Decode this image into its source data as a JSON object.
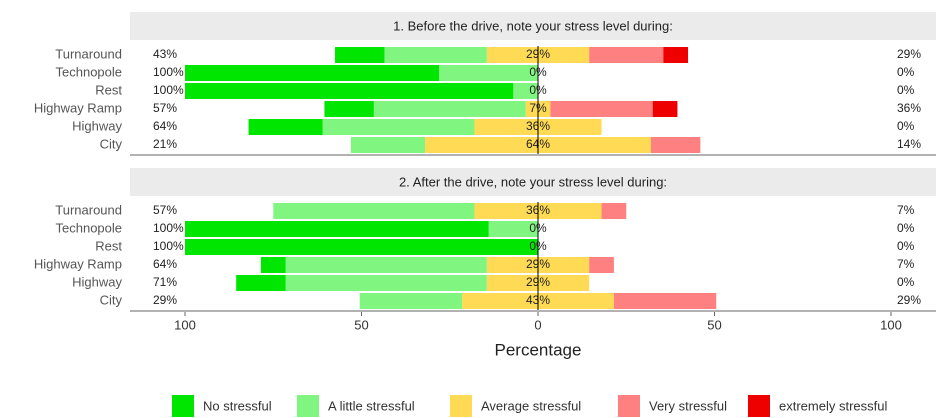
{
  "chart_data": {
    "type": "diverging_bar",
    "x_label": "Percentage",
    "xlim": [
      -100,
      100
    ],
    "xticks": [
      {
        "value": -100,
        "label": "100"
      },
      {
        "value": -50,
        "label": "50"
      },
      0,
      50,
      100
    ],
    "panels": [
      {
        "title": "1. Before the drive, note your stress level during:",
        "categories": [
          "Turnaround",
          "Technopole",
          "Rest",
          "Highway Ramp",
          "Highway",
          "City"
        ],
        "left_labels": [
          "43%",
          "100%",
          "100%",
          "57%",
          "64%",
          "21%"
        ],
        "right_labels": [
          "29%",
          "0%",
          "0%",
          "36%",
          "0%",
          "14%"
        ],
        "series": [
          {
            "name": "No stressful",
            "color": "#00e600",
            "values": [
              14,
              72,
              93,
              14,
              21,
              0
            ]
          },
          {
            "name": "A little stressful",
            "color": "#80f580",
            "values": [
              29,
              28,
              7,
              43,
              43,
              21
            ]
          },
          {
            "name": "Average stressful",
            "color": "#ffdb55",
            "values": [
              29,
              0,
              0,
              7,
              36,
              64
            ],
            "value_labels": [
              "29%",
              "0%",
              "0%",
              "7%",
              "36%",
              "64%"
            ]
          },
          {
            "name": "Very stressful",
            "color": "#ff8080",
            "values": [
              21,
              0,
              0,
              29,
              0,
              14
            ]
          },
          {
            "name": "extremely stressful",
            "color": "#ee0000",
            "values": [
              7,
              0,
              0,
              7,
              0,
              0
            ]
          }
        ]
      },
      {
        "title": "2. After the drive, note your stress level during:",
        "categories": [
          "Turnaround",
          "Technopole",
          "Rest",
          "Highway Ramp",
          "Highway",
          "City"
        ],
        "left_labels": [
          "57%",
          "100%",
          "100%",
          "64%",
          "71%",
          "29%"
        ],
        "right_labels": [
          "7%",
          "0%",
          "0%",
          "7%",
          "0%",
          "29%"
        ],
        "series": [
          {
            "name": "No stressful",
            "color": "#00e600",
            "values": [
              0,
              86,
              100,
              7,
              14,
              0
            ]
          },
          {
            "name": "A little stressful",
            "color": "#80f580",
            "values": [
              57,
              14,
              0,
              57,
              57,
              29
            ]
          },
          {
            "name": "Average stressful",
            "color": "#ffdb55",
            "values": [
              36,
              0,
              0,
              29,
              29,
              43
            ],
            "value_labels": [
              "36%",
              "0%",
              "0%",
              "29%",
              "29%",
              "43%"
            ]
          },
          {
            "name": "Very stressful",
            "color": "#ff8080",
            "values": [
              7,
              0,
              0,
              7,
              0,
              29
            ]
          },
          {
            "name": "extremely stressful",
            "color": "#ee0000",
            "values": [
              0,
              0,
              0,
              0,
              0,
              0
            ]
          }
        ]
      }
    ]
  }
}
